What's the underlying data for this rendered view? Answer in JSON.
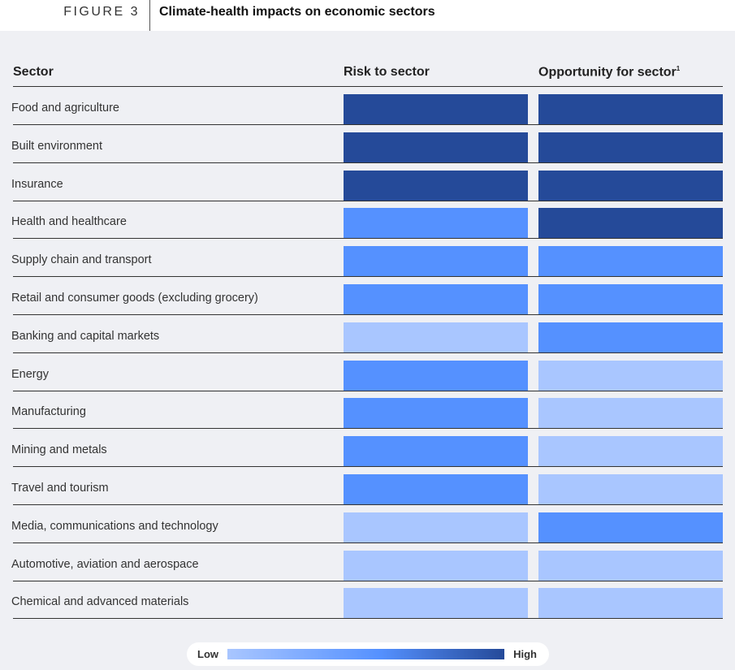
{
  "figure_label": "FIGURE 3",
  "title": "Climate-health impacts on economic sectors",
  "chart_data": {
    "type": "heatmap",
    "title": "Climate-health impacts on economic sectors",
    "columns": [
      "Sector",
      "Risk to sector",
      "Opportunity for sector"
    ],
    "opportunity_footnote": "1",
    "scale": [
      "Low",
      "Medium",
      "High"
    ],
    "colors": {
      "Low": "#a9c6ff",
      "Medium": "#5591ff",
      "High": "#254a99"
    },
    "rows": [
      {
        "sector": "Food and agriculture",
        "risk": "High",
        "opportunity": "High"
      },
      {
        "sector": "Built environment",
        "risk": "High",
        "opportunity": "High"
      },
      {
        "sector": "Insurance",
        "risk": "High",
        "opportunity": "High"
      },
      {
        "sector": "Health and healthcare",
        "risk": "Medium",
        "opportunity": "High"
      },
      {
        "sector": "Supply chain and transport",
        "risk": "Medium",
        "opportunity": "Medium"
      },
      {
        "sector": "Retail and consumer goods (excluding grocery)",
        "risk": "Medium",
        "opportunity": "Medium"
      },
      {
        "sector": "Banking and capital markets",
        "risk": "Low",
        "opportunity": "Medium"
      },
      {
        "sector": "Energy",
        "risk": "Medium",
        "opportunity": "Low"
      },
      {
        "sector": "Manufacturing",
        "risk": "Medium",
        "opportunity": "Low"
      },
      {
        "sector": "Mining and metals",
        "risk": "Medium",
        "opportunity": "Low"
      },
      {
        "sector": "Travel and tourism",
        "risk": "Medium",
        "opportunity": "Low"
      },
      {
        "sector": "Media, communications and technology",
        "risk": "Low",
        "opportunity": "Medium"
      },
      {
        "sector": "Automotive, aviation and aerospace",
        "risk": "Low",
        "opportunity": "Low"
      },
      {
        "sector": "Chemical and advanced materials",
        "risk": "Low",
        "opportunity": "Low"
      }
    ],
    "legend": {
      "low_label": "Low",
      "high_label": "High",
      "placement": "bottom"
    }
  }
}
